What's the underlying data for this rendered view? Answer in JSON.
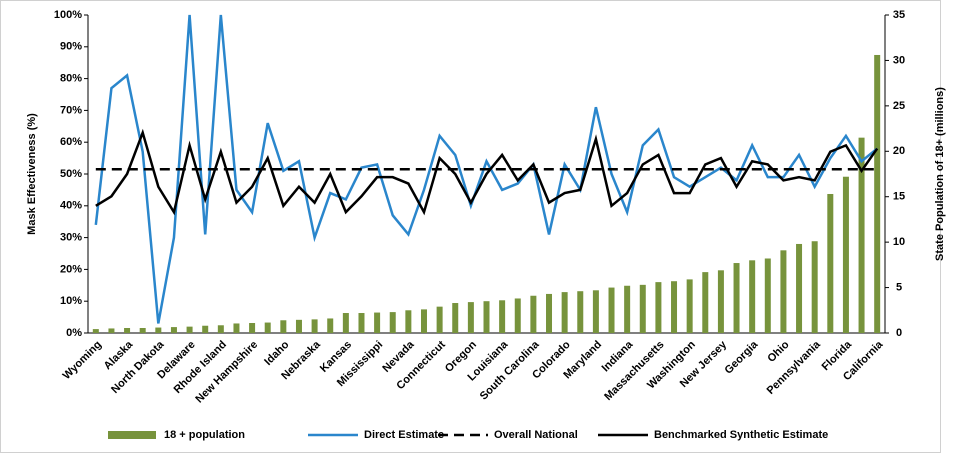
{
  "chart_data": {
    "type": "combo",
    "ylabel": "Mask Effectiveness (%)",
    "y2label": "State Population of 18+ (millions)",
    "categories": [
      "Wyoming",
      null,
      "Alaska",
      null,
      "North Dakota",
      null,
      "Delaware",
      null,
      "Rhode Island",
      null,
      "New Hampshire",
      null,
      "Idaho",
      null,
      "Nebraska",
      null,
      "Kansas",
      null,
      "Mississippi",
      null,
      "Nevada",
      null,
      "Connecticut",
      null,
      "Oregon",
      null,
      "Louisiana",
      null,
      "South Carolina",
      null,
      "Colorado",
      null,
      "Maryland",
      null,
      "Indiana",
      null,
      "Massachusetts",
      null,
      "Washington",
      null,
      "New Jersey",
      null,
      "Georgia",
      null,
      "Ohio",
      null,
      "Pennsylvania",
      null,
      "Florida",
      null,
      "California"
    ],
    "ylim": [
      0,
      100
    ],
    "yticks": [
      {
        "value": 0,
        "label": "0%"
      },
      {
        "value": 10,
        "label": "10%"
      },
      {
        "value": 20,
        "label": "20%"
      },
      {
        "value": 30,
        "label": "30%"
      },
      {
        "value": 40,
        "label": "40%"
      },
      {
        "value": 50,
        "label": "50%"
      },
      {
        "value": 60,
        "label": "60%"
      },
      {
        "value": 70,
        "label": "70%"
      },
      {
        "value": 80,
        "label": "80%"
      },
      {
        "value": 90,
        "label": "90%"
      },
      {
        "value": 100,
        "label": "100%"
      }
    ],
    "y2lim": [
      0,
      35
    ],
    "y2ticks": [
      0,
      5,
      10,
      15,
      20,
      25,
      30,
      35
    ],
    "series": [
      {
        "name": "18 + population",
        "type": "bar",
        "axis": "y2",
        "color": "#77933c",
        "values": [
          0.43,
          0.5,
          0.55,
          0.55,
          0.6,
          0.65,
          0.7,
          0.8,
          0.85,
          1.05,
          1.1,
          1.15,
          1.4,
          1.45,
          1.5,
          1.6,
          2.2,
          2.2,
          2.25,
          2.3,
          2.5,
          2.6,
          2.9,
          3.3,
          3.4,
          3.5,
          3.6,
          3.8,
          4.1,
          4.3,
          4.5,
          4.6,
          4.7,
          5.0,
          5.2,
          5.3,
          5.6,
          5.7,
          5.9,
          6.7,
          6.9,
          7.7,
          8.0,
          8.2,
          9.1,
          9.8,
          10.1,
          15.3,
          17.2,
          21.5,
          30.6
        ]
      },
      {
        "name": "Direct Estimate",
        "type": "line",
        "color": "#2a86cc",
        "values": [
          34,
          77,
          81,
          57,
          3,
          30,
          100,
          31,
          100,
          45,
          38,
          66,
          51,
          54,
          30,
          44,
          42,
          52,
          53,
          37,
          31,
          45,
          62,
          56,
          40,
          54,
          45,
          47,
          53,
          31,
          53,
          45,
          71,
          50,
          38,
          59,
          64,
          49,
          46,
          49,
          52,
          48,
          59,
          49,
          49,
          56,
          46,
          55,
          62,
          54,
          58
        ]
      },
      {
        "name": "Overall National",
        "type": "dashed",
        "color": "#000000",
        "value": 51.5
      },
      {
        "name": "Benchmarked Synthetic Estimate",
        "type": "line",
        "color": "#000000",
        "values": [
          40,
          43,
          50,
          63,
          46,
          38,
          59,
          42,
          57,
          41,
          46,
          55,
          40,
          46,
          41,
          50,
          38,
          43,
          49,
          49,
          47,
          38,
          55,
          50,
          41,
          50,
          56,
          48,
          53,
          41,
          44,
          45,
          61,
          40,
          44,
          53,
          56,
          44,
          44,
          53,
          55,
          46,
          54,
          53,
          48,
          49,
          48,
          57,
          59,
          51,
          58
        ]
      }
    ]
  }
}
